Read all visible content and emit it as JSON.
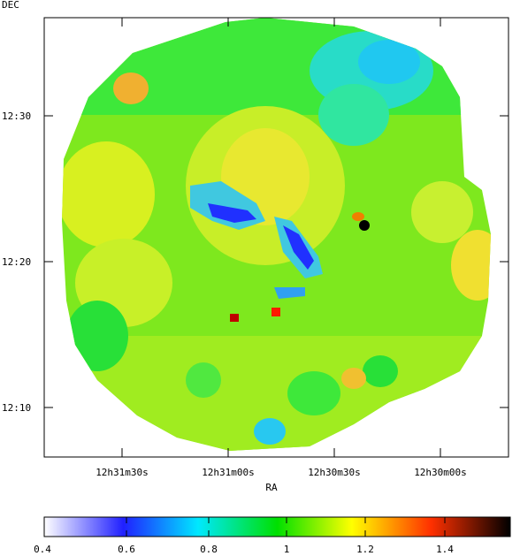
{
  "map": {
    "ylabel": "DEC",
    "xlabel": "RA",
    "dec_ticks": [
      "12:30",
      "12:20",
      "12:10"
    ],
    "ra_ticks": [
      "12h31m30s",
      "12h31m00s",
      "12h30m30s",
      "12h30m00s"
    ],
    "background_color": "#ffffff",
    "frame_color": "#000000"
  },
  "colorbar": {
    "tick_labels": [
      "0.4",
      "0.6",
      "0.8",
      "1",
      "1.2",
      "1.4"
    ],
    "range": [
      0.4,
      1.56
    ],
    "palette": [
      "#ffffff",
      "#0000ff",
      "#00ffff",
      "#00ff00",
      "#ffff00",
      "#ff0000",
      "#000000"
    ]
  }
}
